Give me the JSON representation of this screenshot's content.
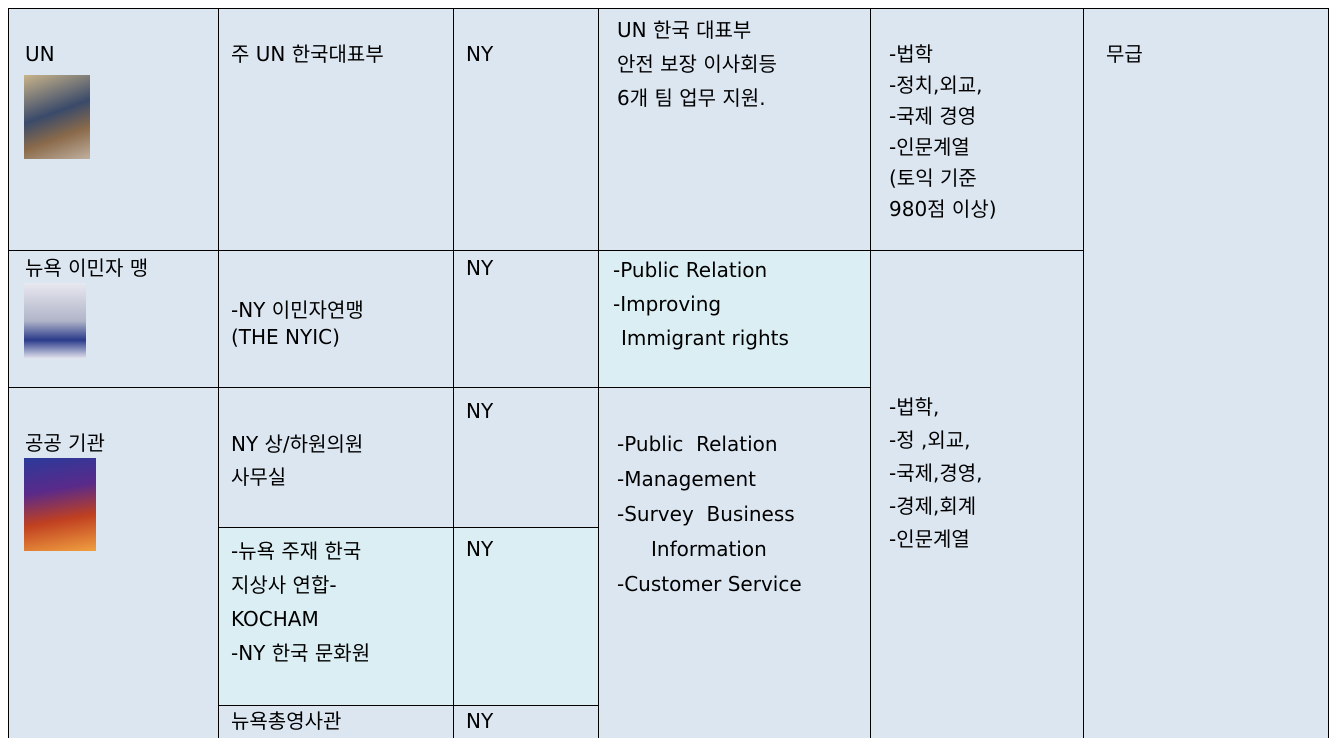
{
  "table": {
    "rows": [
      [
        [
          "UN"
        ],
        [
          "주 UN 한국대표부"
        ],
        [
          "NY"
        ],
        [
          "UN 한국 대표부",
          "안전 보장 이사회등",
          "6개 팀 업무 지원."
        ],
        [
          "-법학",
          "-정치,외교,",
          "-국제 경영",
          "-인문계열",
          "(토익 기준",
          "980점 이상)"
        ],
        [
          "무급"
        ]
      ],
      [
        [
          "뉴욕 이민자 맹"
        ],
        [
          "-NY 이민자연맹",
          "(THE NYIC)"
        ],
        [
          "NY"
        ],
        [
          "-Public Relation",
          "-Improving",
          "Immigrant rights"
        ],
        [
          "-법학,",
          "-정 ,외교,",
          "-국제,경영,",
          "-경제,회계",
          "-인문계열"
        ]
      ],
      [
        [
          "공공 기관"
        ],
        [
          "NY 상/하원의원",
          "사무실"
        ],
        [
          "NY"
        ],
        [
          "-Public  Relation",
          "-Management",
          "-Survey  Business",
          "Information",
          "-Customer Service"
        ]
      ],
      [
        [
          "-뉴욕 주재 한국",
          "지상사 연합-",
          "KOCHAM",
          "-NY 한국 문화원"
        ],
        [
          "NY"
        ]
      ],
      [
        [
          "뉴욕총영사관"
        ],
        [
          "NY"
        ]
      ]
    ]
  }
}
